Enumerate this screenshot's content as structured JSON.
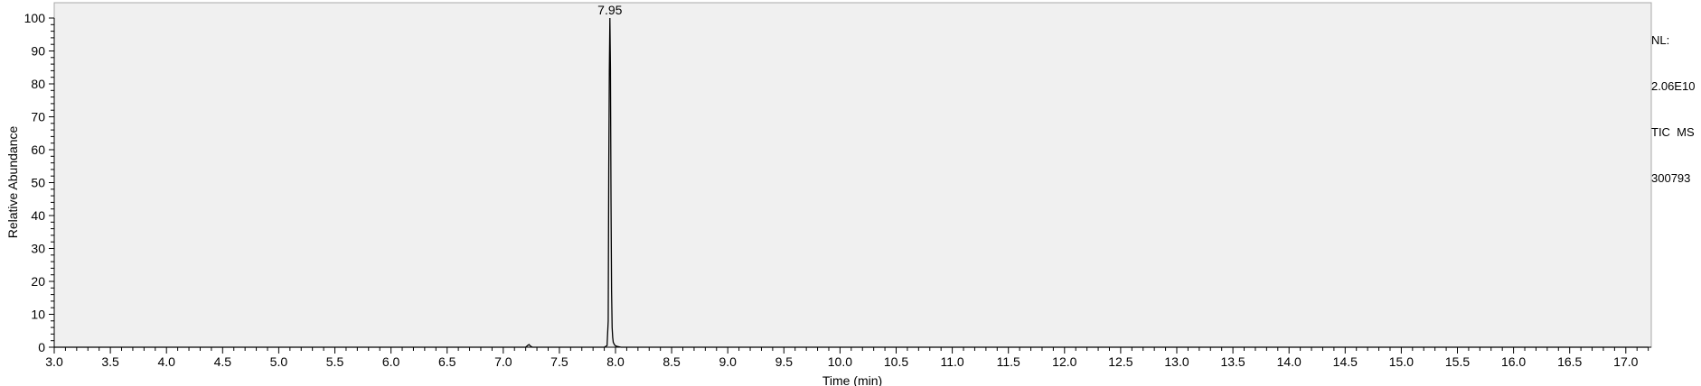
{
  "chart_data": {
    "type": "line",
    "title": "",
    "xlabel": "Time (min)",
    "ylabel": "Relative Abundance",
    "xlim": [
      3.0,
      17.2
    ],
    "ylim": [
      0,
      100
    ],
    "x_ticks": [
      "3.0",
      "3.5",
      "4.0",
      "4.5",
      "5.0",
      "5.5",
      "6.0",
      "6.5",
      "7.0",
      "7.5",
      "8.0",
      "8.5",
      "9.0",
      "9.5",
      "10.0",
      "10.5",
      "11.0",
      "11.5",
      "12.0",
      "12.5",
      "13.0",
      "13.5",
      "14.0",
      "14.5",
      "15.0",
      "15.5",
      "16.0",
      "16.5",
      "17.0"
    ],
    "y_ticks": [
      "0",
      "10",
      "20",
      "30",
      "40",
      "50",
      "60",
      "70",
      "80",
      "90",
      "100"
    ],
    "grid": false,
    "plot_background": "#f0f0f0",
    "line_color": "#000000",
    "series": [
      {
        "x": [
          3.0,
          7.2,
          7.22,
          7.23,
          7.24,
          7.26,
          7.9,
          7.925,
          7.935,
          7.94,
          7.945,
          7.95,
          7.955,
          7.96,
          7.965,
          7.97,
          7.975,
          7.98,
          7.99,
          8.0,
          8.02,
          8.05,
          17.2
        ],
        "y": [
          0,
          0,
          0.6,
          0.8,
          0.4,
          0,
          0,
          0.5,
          8,
          54,
          84,
          100,
          85,
          45,
          17,
          6,
          3,
          1.5,
          0.8,
          0.4,
          0.2,
          0,
          0
        ]
      }
    ],
    "annotations": [
      {
        "text": "7.95",
        "x": 7.95,
        "y": 100
      }
    ]
  },
  "info": {
    "nl_label": "NL:",
    "nl_value": "2.06E10",
    "trace": "TIC  MS",
    "sample": "300793"
  }
}
